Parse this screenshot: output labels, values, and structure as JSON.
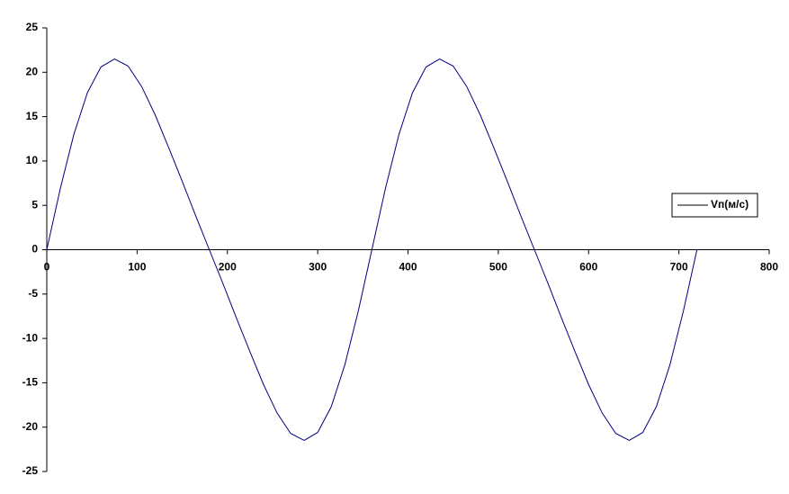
{
  "chart_data": {
    "type": "line",
    "x": [
      0,
      15,
      30,
      45,
      60,
      75,
      90,
      105,
      120,
      135,
      150,
      165,
      180,
      195,
      210,
      225,
      240,
      255,
      270,
      285,
      300,
      315,
      330,
      345,
      360,
      375,
      390,
      405,
      420,
      435,
      450,
      465,
      480,
      495,
      510,
      525,
      540,
      555,
      570,
      585,
      600,
      615,
      630,
      645,
      660,
      675,
      690,
      705,
      720
    ],
    "series": [
      {
        "name": "Vп(м/с)",
        "color": "#000080",
        "values": [
          0,
          6.9,
          13.0,
          17.7,
          20.6,
          21.5,
          20.7,
          18.4,
          15.2,
          11.5,
          7.7,
          3.8,
          0,
          -3.8,
          -7.7,
          -11.5,
          -15.2,
          -18.4,
          -20.7,
          -21.5,
          -20.6,
          -17.7,
          -13.0,
          -6.9,
          0,
          6.9,
          13.0,
          17.7,
          20.6,
          21.5,
          20.7,
          18.4,
          15.2,
          11.5,
          7.7,
          3.8,
          0,
          -3.8,
          -7.7,
          -11.5,
          -15.2,
          -18.4,
          -20.7,
          -21.5,
          -20.6,
          -17.7,
          -13.0,
          -6.9,
          0
        ]
      }
    ],
    "xlim": [
      0,
      800
    ],
    "xticks": [
      0,
      100,
      200,
      300,
      400,
      500,
      600,
      700,
      800
    ],
    "ylim": [
      -25,
      25
    ],
    "yticks": [
      -25,
      -20,
      -15,
      -10,
      -5,
      0,
      5,
      10,
      15,
      20,
      25
    ],
    "grid": false,
    "legend": "right"
  }
}
